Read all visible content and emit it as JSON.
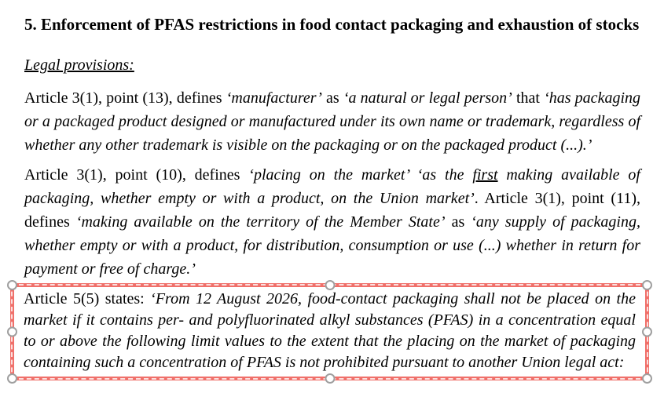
{
  "document": {
    "heading": "5. Enforcement of PFAS restrictions in food contact packaging and exhaustion of stocks",
    "subheading": "Legal provisions:",
    "paragraph_manufacturer": [
      "Article 3(1), point (13), defines ",
      "‘manufacturer’",
      " as ",
      "‘a natural or legal person’",
      " that ",
      "‘has packaging or a packaged product designed or manufactured under its own name or trademark, regardless of whether any other trademark is visible on the packaging or on the packaged product (...).’"
    ],
    "paragraph_placing_on_market": [
      "Article 3(1), point (10), defines ",
      "‘placing on the market’",
      " ‘as the ",
      "first",
      " making available of packaging, whether empty or with a product, on the Union market’",
      ". Article 3(1), point (11), defines ",
      "‘making available on the territory of the Member State’",
      " as ",
      "‘any supply of packaging, whether empty or with a product, for distribution, consumption or use (...) whether in return for payment or free of charge.’"
    ],
    "paragraph_article_5_5": [
      "Article 5(5) states: ",
      "‘From 12 August 2026, food-contact packaging shall not be placed on the market if it contains per- and polyfluorinated alkyl substances (PFAS) in a concentration equal to or above the following limit values to the extent that the placing on the market of packaging containing such a concentration of PFAS is not prohibited pursuant to another Union legal act:"
    ]
  },
  "annotation": {
    "type": "selected-rectangle-highlight",
    "border_color": "#f0706a",
    "dash_color": "rgba(255,255,255,0.78)",
    "handle_fill": "#ffffff",
    "handle_stroke": "#9f9f9f",
    "page_background": "#ffffff",
    "handles": [
      "top-left",
      "top-center",
      "top-right",
      "middle-left",
      "middle-right",
      "bottom-left",
      "bottom-center",
      "bottom-right"
    ]
  }
}
